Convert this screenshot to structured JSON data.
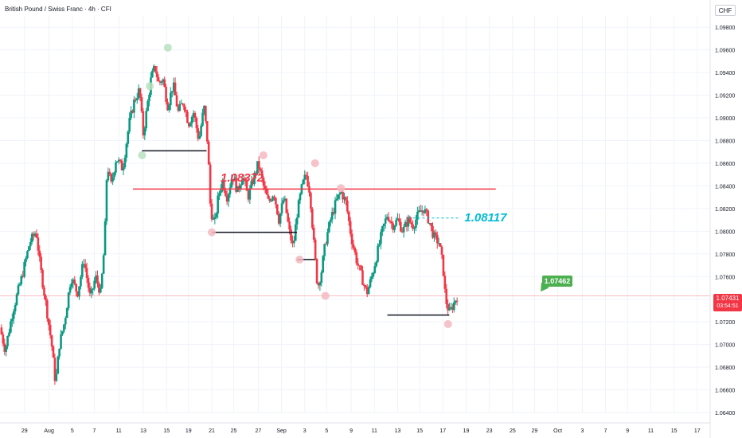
{
  "title": "British Pound / Swiss Franc · 4h · CFI",
  "currency": "CHF",
  "current_price": {
    "value": "1.07431",
    "countdown": "03:54:51",
    "color": "#f23645"
  },
  "target_label": {
    "value": "1.07462",
    "color": "#4caf50"
  },
  "levels": [
    {
      "label": "1.08372",
      "price": 1.08372,
      "style": "solid",
      "color": "#f23645",
      "from": 5.3,
      "to": 33.4
    },
    {
      "label": "1.08117",
      "price": 1.08117,
      "style": "dashed",
      "color": "#00bcd4",
      "from": 26.6,
      "to": 30.6
    }
  ],
  "chart_data": {
    "type": "candlestick",
    "ylim": [
      1.064,
      1.099
    ],
    "xlim": [
      -5.0,
      50.0
    ],
    "y_ticks": [
      "1.06400",
      "1.06600",
      "1.06800",
      "1.07000",
      "1.07200",
      "1.07400",
      "1.07600",
      "1.07800",
      "1.08000",
      "1.08200",
      "1.08400",
      "1.08600",
      "1.08800",
      "1.09000",
      "1.09200",
      "1.09400",
      "1.09600",
      "1.09800"
    ],
    "x_ticks": [
      {
        "label": "29",
        "x": -3.1
      },
      {
        "label": "Aug",
        "x": -1.2
      },
      {
        "label": "5",
        "x": 0.6
      },
      {
        "label": "7",
        "x": 2.3
      },
      {
        "label": "11",
        "x": 4.2
      },
      {
        "label": "13",
        "x": 6.1
      },
      {
        "label": "15",
        "x": 7.9
      },
      {
        "label": "19",
        "x": 9.6
      },
      {
        "label": "21",
        "x": 11.4
      },
      {
        "label": "25",
        "x": 13.1
      },
      {
        "label": "27",
        "x": 15.0
      },
      {
        "label": "Sep",
        "x": 16.8
      },
      {
        "label": "3",
        "x": 18.6
      },
      {
        "label": "5",
        "x": 20.3
      },
      {
        "label": "9",
        "x": 22.2
      },
      {
        "label": "11",
        "x": 24.0
      },
      {
        "label": "13",
        "x": 25.8
      },
      {
        "label": "15",
        "x": 27.5
      },
      {
        "label": "17",
        "x": 29.3
      },
      {
        "label": "19",
        "x": 31.1
      },
      {
        "label": "23",
        "x": 32.9
      },
      {
        "label": "25",
        "x": 34.7
      },
      {
        "label": "29",
        "x": 36.4
      },
      {
        "label": "Oct",
        "x": 38.2
      },
      {
        "label": "3",
        "x": 40.1
      },
      {
        "label": "7",
        "x": 41.9
      },
      {
        "label": "9",
        "x": 43.6
      },
      {
        "label": "11",
        "x": 45.4
      },
      {
        "label": "15",
        "x": 47.2
      },
      {
        "label": "17",
        "x": 49.0
      }
    ],
    "price_path": [
      [
        -5.0,
        1.0715
      ],
      [
        -4.6,
        1.0695
      ],
      [
        -4.0,
        1.073
      ],
      [
        -3.3,
        1.076
      ],
      [
        -2.7,
        1.079
      ],
      [
        -2.2,
        1.08
      ],
      [
        -1.9,
        1.077
      ],
      [
        -1.5,
        1.074
      ],
      [
        -1.0,
        1.07
      ],
      [
        -0.7,
        1.0665
      ],
      [
        -0.4,
        1.07
      ],
      [
        0.0,
        1.072
      ],
      [
        0.5,
        1.076
      ],
      [
        1.0,
        1.0745
      ],
      [
        1.5,
        1.0775
      ],
      [
        2.0,
        1.074
      ],
      [
        2.4,
        1.076
      ],
      [
        2.8,
        1.0745
      ],
      [
        3.1,
        1.079
      ],
      [
        3.3,
        1.086
      ],
      [
        3.6,
        1.084
      ],
      [
        4.0,
        1.0865
      ],
      [
        4.5,
        1.0855
      ],
      [
        5.0,
        1.0895
      ],
      [
        5.4,
        1.0915
      ],
      [
        5.8,
        1.0925
      ],
      [
        6.1,
        1.0885
      ],
      [
        6.4,
        1.091
      ],
      [
        6.7,
        1.0935
      ],
      [
        7.0,
        1.0945
      ],
      [
        7.3,
        1.093
      ],
      [
        7.6,
        1.0935
      ],
      [
        8.0,
        1.091
      ],
      [
        8.4,
        1.093
      ],
      [
        8.8,
        1.0905
      ],
      [
        9.2,
        1.0915
      ],
      [
        9.6,
        1.0895
      ],
      [
        10.0,
        1.0905
      ],
      [
        10.4,
        1.088
      ],
      [
        10.8,
        1.091
      ],
      [
        11.1,
        1.0875
      ],
      [
        11.3,
        1.082
      ],
      [
        11.6,
        1.0805
      ],
      [
        11.9,
        1.083
      ],
      [
        12.2,
        1.0845
      ],
      [
        12.6,
        1.083
      ],
      [
        13.0,
        1.085
      ],
      [
        13.4,
        1.0835
      ],
      [
        13.8,
        1.085
      ],
      [
        14.2,
        1.083
      ],
      [
        14.6,
        1.0845
      ],
      [
        15.0,
        1.086
      ],
      [
        15.4,
        1.084
      ],
      [
        15.8,
        1.0825
      ],
      [
        16.2,
        1.0835
      ],
      [
        16.6,
        1.081
      ],
      [
        17.0,
        1.083
      ],
      [
        17.4,
        1.08
      ],
      [
        17.7,
        1.0785
      ],
      [
        18.0,
        1.0815
      ],
      [
        18.4,
        1.084
      ],
      [
        18.7,
        1.085
      ],
      [
        19.0,
        1.0835
      ],
      [
        19.3,
        1.079
      ],
      [
        19.6,
        1.075
      ],
      [
        19.9,
        1.0765
      ],
      [
        20.2,
        1.079
      ],
      [
        20.6,
        1.081
      ],
      [
        21.0,
        1.0825
      ],
      [
        21.4,
        1.0835
      ],
      [
        21.8,
        1.0825
      ],
      [
        22.2,
        1.0795
      ],
      [
        22.6,
        1.0775
      ],
      [
        23.0,
        1.076
      ],
      [
        23.4,
        1.0745
      ],
      [
        23.8,
        1.076
      ],
      [
        24.2,
        1.078
      ],
      [
        24.6,
        1.08
      ],
      [
        25.0,
        1.0815
      ],
      [
        25.4,
        1.0805
      ],
      [
        25.8,
        1.081
      ],
      [
        26.2,
        1.08
      ],
      [
        26.6,
        1.081
      ],
      [
        27.0,
        1.0805
      ],
      [
        27.4,
        1.0815
      ],
      [
        27.8,
        1.082
      ],
      [
        28.2,
        1.081
      ],
      [
        28.6,
        1.0795
      ],
      [
        29.0,
        1.079
      ],
      [
        29.3,
        1.077
      ],
      [
        29.5,
        1.074
      ],
      [
        29.8,
        1.0728
      ],
      [
        30.1,
        1.0735
      ],
      [
        30.4,
        1.0743
      ]
    ],
    "horizontal_segments": [
      {
        "price": 1.0871,
        "from": 6.0,
        "to": 11.0,
        "color": "#131722"
      },
      {
        "price": 1.0799,
        "from": 11.4,
        "to": 18.0,
        "color": "#131722"
      },
      {
        "price": 1.0775,
        "from": 18.0,
        "to": 19.4,
        "color": "#131722"
      },
      {
        "price": 1.0726,
        "from": 25.0,
        "to": 29.8,
        "color": "#131722"
      }
    ],
    "swing_markers": [
      {
        "x": 6.6,
        "y": 1.0928,
        "color": "#b9e0bf"
      },
      {
        "x": 8.0,
        "y": 1.0962,
        "color": "#b9e0bf"
      },
      {
        "x": 6.0,
        "y": 1.0867,
        "color": "#b9e0bf"
      },
      {
        "x": 11.4,
        "y": 1.0799,
        "color": "#f4b9c1"
      },
      {
        "x": 15.4,
        "y": 1.0867,
        "color": "#f4b9c1"
      },
      {
        "x": 18.2,
        "y": 1.0775,
        "color": "#f4b9c1"
      },
      {
        "x": 19.4,
        "y": 1.086,
        "color": "#f4b9c1"
      },
      {
        "x": 20.2,
        "y": 1.0743,
        "color": "#f4b9c1"
      },
      {
        "x": 21.4,
        "y": 1.0838,
        "color": "#f4b9c1"
      },
      {
        "x": 29.7,
        "y": 1.0718,
        "color": "#f4b9c1"
      }
    ],
    "grid": true,
    "colors": {
      "up": "#089981",
      "down": "#f23645",
      "grid": "#f0f3fa",
      "axis_text": "#131722"
    }
  }
}
